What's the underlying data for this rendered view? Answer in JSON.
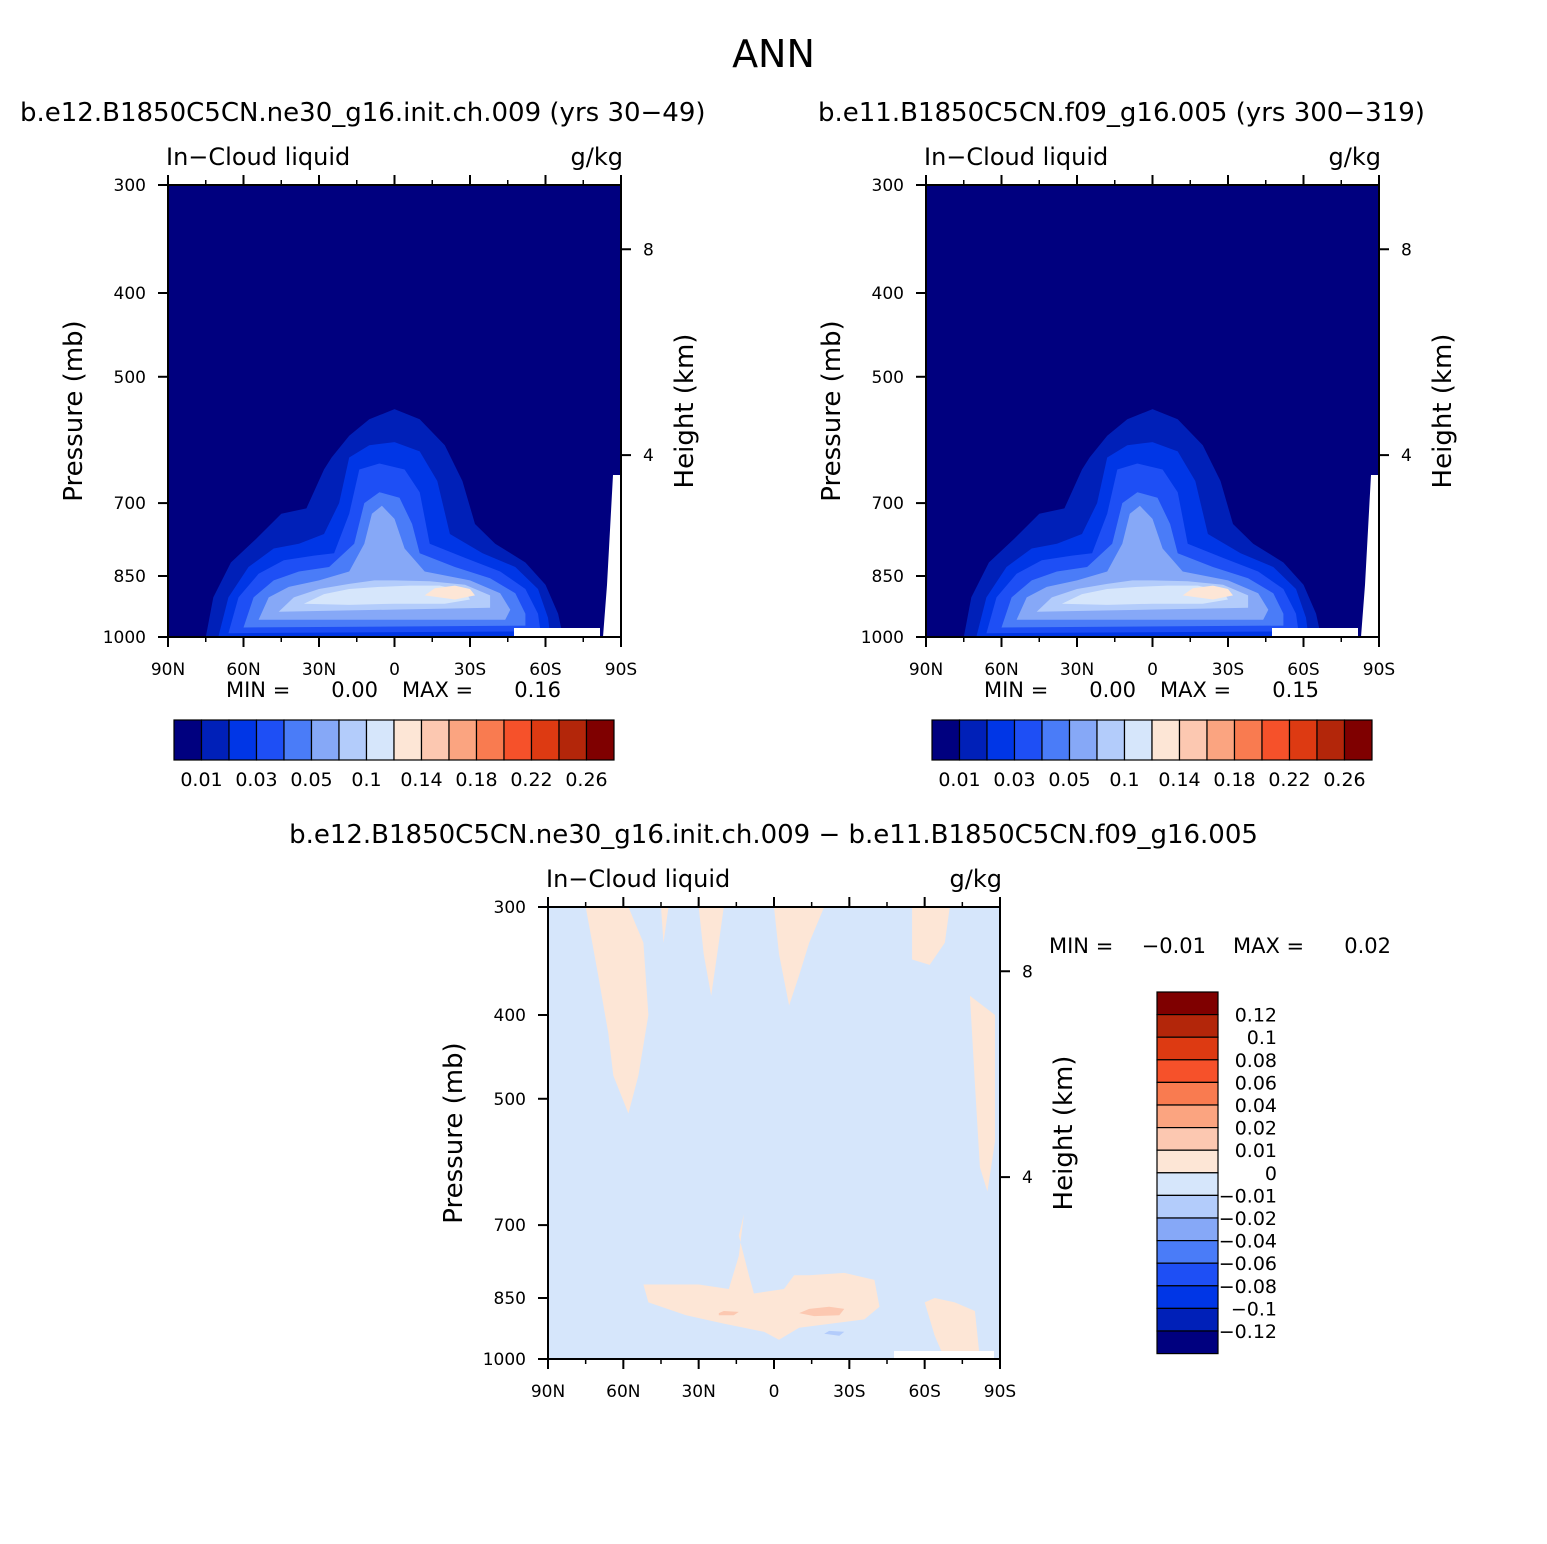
{
  "page": {
    "title": "ANN",
    "diff_title": "b.e12.B1850C5CN.ne30_g16.init.ch.009 − b.e11.B1850C5CN.f09_g16.005"
  },
  "chart_data": [
    {
      "type": "heatmap",
      "title": "b.e12.B1850C5CN.ne30_g16.init.ch.009 (yrs 30−49)",
      "subtitle_left": "In−Cloud liquid",
      "subtitle_right": "g/kg",
      "ylabel": "Pressure (mb)",
      "ylabel_right": "Height (km)",
      "x_ticks": [
        "90N",
        "60N",
        "30N",
        "0",
        "30S",
        "60S",
        "90S"
      ],
      "x_values": [
        90,
        60,
        30,
        0,
        -30,
        -60,
        -90
      ],
      "y_ticks": [
        300,
        400,
        500,
        700,
        850,
        1000
      ],
      "y_right_ticks": [
        8,
        4
      ],
      "ylim": [
        1000,
        300
      ],
      "min_label": "MIN =",
      "min_value": "0.00",
      "max_label": "MAX =",
      "max_value": "0.16",
      "colorbar_levels": [
        "0.01",
        "0.03",
        "0.05",
        "0.1",
        "0.14",
        "0.18",
        "0.22",
        "0.26"
      ],
      "features": [
        {
          "lat": 10,
          "pressure": 860,
          "value": 0.11
        },
        {
          "lat": -20,
          "pressure": 880,
          "value": 0.16
        },
        {
          "lat": 5,
          "pressure": 720,
          "value": 0.07
        },
        {
          "lat": -50,
          "pressure": 900,
          "value": 0.05
        },
        {
          "lat": 60,
          "pressure": 900,
          "value": 0.04
        }
      ]
    },
    {
      "type": "heatmap",
      "title": "b.e11.B1850C5CN.f09_g16.005 (yrs 300−319)",
      "subtitle_left": "In−Cloud liquid",
      "subtitle_right": "g/kg",
      "ylabel": "Pressure (mb)",
      "ylabel_right": "Height (km)",
      "x_ticks": [
        "90N",
        "60N",
        "30N",
        "0",
        "30S",
        "60S",
        "90S"
      ],
      "x_values": [
        90,
        60,
        30,
        0,
        -30,
        -60,
        -90
      ],
      "y_ticks": [
        300,
        400,
        500,
        700,
        850,
        1000
      ],
      "y_right_ticks": [
        8,
        4
      ],
      "ylim": [
        1000,
        300
      ],
      "min_label": "MIN =",
      "min_value": "0.00",
      "max_label": "MAX =",
      "max_value": "0.15",
      "colorbar_levels": [
        "0.01",
        "0.03",
        "0.05",
        "0.1",
        "0.14",
        "0.18",
        "0.22",
        "0.26"
      ],
      "features": [
        {
          "lat": 10,
          "pressure": 860,
          "value": 0.11
        },
        {
          "lat": -20,
          "pressure": 880,
          "value": 0.15
        },
        {
          "lat": 0,
          "pressure": 720,
          "value": 0.07
        }
      ]
    },
    {
      "type": "heatmap",
      "title": "b.e12.B1850C5CN.ne30_g16.init.ch.009 − b.e11.B1850C5CN.f09_g16.005",
      "subtitle_left": "In−Cloud liquid",
      "subtitle_right": "g/kg",
      "ylabel": "Pressure (mb)",
      "ylabel_right": "Height (km)",
      "x_ticks": [
        "90N",
        "60N",
        "30N",
        "0",
        "30S",
        "60S",
        "90S"
      ],
      "x_values": [
        90,
        60,
        30,
        0,
        -30,
        -60,
        -90
      ],
      "y_ticks": [
        300,
        400,
        500,
        700,
        850,
        1000
      ],
      "y_right_ticks": [
        8,
        4
      ],
      "ylim": [
        1000,
        300
      ],
      "min_label": "MIN =",
      "min_value": "−0.01",
      "max_label": "MAX =",
      "max_value": "0.02",
      "colorbar_levels": [
        "0.12",
        "0.1",
        "0.08",
        "0.06",
        "0.04",
        "0.02",
        "0.01",
        "0",
        "−0.01",
        "−0.02",
        "−0.04",
        "−0.06",
        "−0.08",
        "−0.1",
        "−0.12"
      ],
      "features": [
        {
          "lat": 5,
          "pressure": 860,
          "value": 0.01
        },
        {
          "lat": -20,
          "pressure": 870,
          "value": 0.02
        },
        {
          "lat": 20,
          "pressure": 870,
          "value": 0.02
        },
        {
          "lat": -20,
          "pressure": 930,
          "value": -0.01
        }
      ]
    }
  ],
  "colors": {
    "seq": [
      "#00007f",
      "#0020b8",
      "#0036e6",
      "#1e4ff5",
      "#4a7cf8",
      "#86a8f7",
      "#b3ccfb",
      "#d6e6fb",
      "#fde6d6",
      "#fcc8b1",
      "#fba480",
      "#f97b50",
      "#f6512a",
      "#dd3a12",
      "#b3260a",
      "#7f0000"
    ],
    "diff": [
      "#7f0000",
      "#b3260a",
      "#dd3a12",
      "#f6512a",
      "#f97b50",
      "#fba480",
      "#fcc8b1",
      "#fde6d6",
      "#d6e6fb",
      "#b3ccfb",
      "#86a8f7",
      "#4a7cf8",
      "#1e4ff5",
      "#0036e6",
      "#0020b8",
      "#00007f"
    ]
  }
}
